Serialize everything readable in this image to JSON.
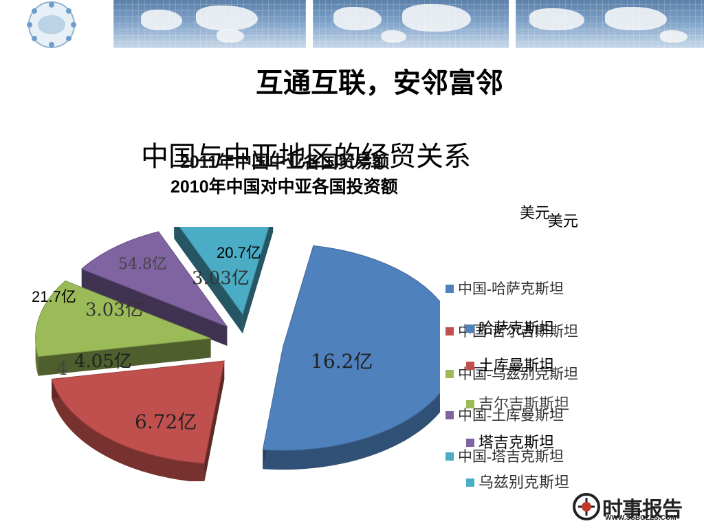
{
  "slide": {
    "headline": "互通互联，安邻富邻",
    "title_main": "中国与中亚地区的经贸关系",
    "title_sub1": "2011年中国中亚各国贸易额",
    "title_sub2": "2010年中国对中亚各国投资额",
    "unit1": "美元",
    "unit2": "美元"
  },
  "chart_data": {
    "type": "pie",
    "title": "",
    "categories": [
      "哈萨克斯坦",
      "土库曼斯坦",
      "吉尔吉斯斯坦",
      "塔吉克斯坦",
      "乌兹别克斯坦"
    ],
    "colors": [
      "#4f81bd",
      "#c0504d",
      "#9bbb59",
      "#8064a2",
      "#4bacc6"
    ],
    "series": [
      {
        "legend": [
          "中国-哈萨克斯坦",
          "中国-吉尔吉斯斯坦",
          "中国-乌兹别克斯坦",
          "中国-土库曼斯坦",
          "中国-塔吉克斯坦"
        ],
        "labels": [
          "",
          "",
          "",
          "54.8亿",
          "20.7亿"
        ],
        "outer_labels": [
          "21.7亿",
          "4"
        ]
      },
      {
        "legend": [
          "哈萨克斯坦",
          "土库曼斯坦",
          "吉尔吉斯斯坦",
          "塔吉克斯坦",
          "乌兹别克斯坦"
        ],
        "values": [
          16.2,
          6.72,
          4.05,
          3.03,
          3.03
        ],
        "labels": [
          "16.2亿",
          "6.72亿",
          "4.05亿",
          "3.03亿",
          "3.03亿"
        ]
      }
    ]
  },
  "logo": {
    "text": "时事报告",
    "url": "WWW.SSBGZZS.COM"
  }
}
